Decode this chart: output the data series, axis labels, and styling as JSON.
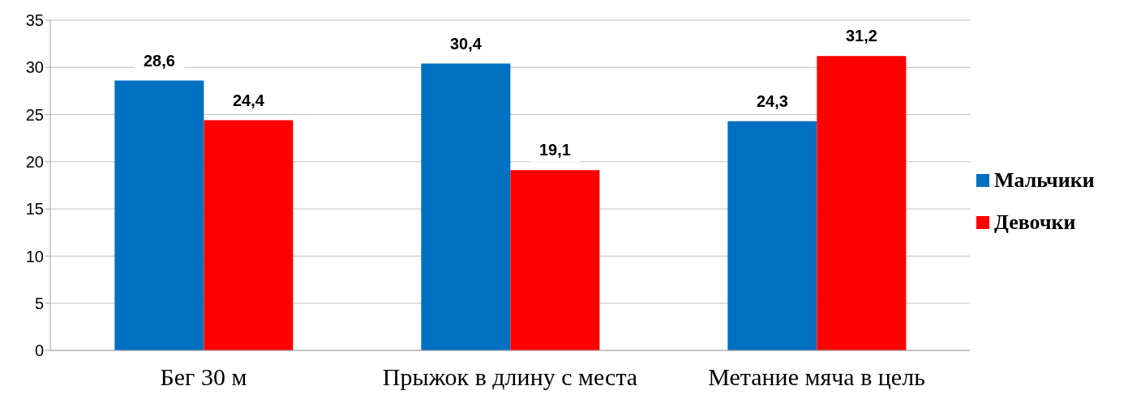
{
  "chart_data": {
    "type": "bar",
    "categories": [
      "Бег 30 м",
      "Прыжок в длину с места",
      "Метание мяча в цель"
    ],
    "series": [
      {
        "name": "Мальчики",
        "color": "#0070c0",
        "values": [
          28.6,
          30.4,
          24.3
        ],
        "value_labels": [
          "28,6",
          "30,4",
          "24,3"
        ]
      },
      {
        "name": "Девочки",
        "color": "#ff0000",
        "values": [
          24.4,
          19.1,
          31.2
        ],
        "value_labels": [
          "24,4",
          "19,1",
          "31,2"
        ]
      }
    ],
    "ylim": [
      0,
      35
    ],
    "yticks": [
      0,
      5,
      10,
      15,
      20,
      25,
      30,
      35
    ],
    "grid": "y",
    "legend": "right"
  }
}
